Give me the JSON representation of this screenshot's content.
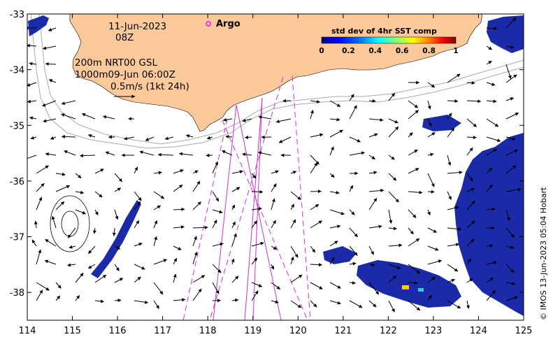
{
  "map": {
    "lon_ticks": [
      "114",
      "115",
      "116",
      "117",
      "118",
      "119",
      "120",
      "121",
      "122",
      "123",
      "124",
      "125"
    ],
    "lat_ticks": [
      "-33",
      "-34",
      "-35",
      "-36",
      "-37",
      "-38"
    ],
    "lon_range": [
      114,
      125
    ],
    "lat_range": [
      -38.5,
      -33
    ]
  },
  "info": {
    "date": "11-Jun-2023",
    "time": "08Z",
    "depth_line1": "200m  NRT00 GSL",
    "depth_line2": "1000m09-Jun 06:00Z",
    "scale_text": "0.5m/s (1kt 24h)"
  },
  "legend": {
    "argo_label": "Argo",
    "argo_color": "#ff00ff"
  },
  "colorbar": {
    "title": "std dev of 4hr SST comp",
    "ticks": [
      "0",
      "0.2",
      "0.4",
      "0.6",
      "0.8",
      "1"
    ],
    "colors": [
      "#00007f",
      "#0000ff",
      "#007fff",
      "#00ffff",
      "#7fff7f",
      "#ffff00",
      "#ff7f00",
      "#ff0000",
      "#7f0000"
    ]
  },
  "credit": "© IMOS 13-Jun-2023 05:04 Hobart",
  "colors": {
    "land": "#fcc99a",
    "sst_patch": "#1a2aa8",
    "swath": "#cc33cc",
    "contour": "#aaaaaa"
  }
}
